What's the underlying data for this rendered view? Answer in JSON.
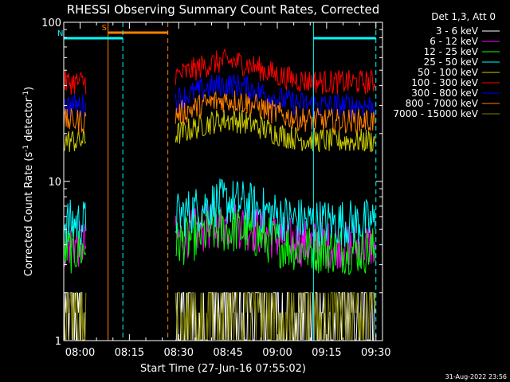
{
  "chart_data": {
    "type": "line",
    "title": "RHESSI Observing Summary Count Rates, Corrected",
    "xlabel": "Start Time (27-Jun-16 07:55:02)",
    "ylabel_main": "Corrected Count Rate (s",
    "ylabel_sup1": "-1",
    "ylabel_mid": " detector",
    "ylabel_sup2": "-1",
    "ylabel_end": ")",
    "yscale": "log",
    "ylim": [
      1,
      100
    ],
    "y_ticks": [
      "1",
      "10",
      "100"
    ],
    "x_ticks": [
      "08:00",
      "08:15",
      "08:30",
      "08:45",
      "09:00",
      "09:15",
      "09:30"
    ],
    "x_tick_minutes": [
      480,
      495,
      510,
      525,
      540,
      555,
      570
    ],
    "xlim_minutes": [
      475.03,
      572
    ],
    "legend_title": "Det 1,3, Att 0",
    "legend_position": "right",
    "timestamp": "31-Aug-2022 23:56",
    "markers": [
      {
        "label": "S",
        "color": "#ff8000",
        "start_min": 488.5,
        "end_min": 506.7
      },
      {
        "label": "N",
        "color": "#00ffff",
        "start_min": 475.03,
        "end_min": 493.0
      },
      {
        "label": "",
        "color": "#00ffff",
        "start_min": 551.0,
        "end_min": 570.0
      }
    ],
    "gaps_minutes": [
      [
        482.0,
        508.8
      ],
      [
        570.0,
        572.0
      ]
    ],
    "series": [
      {
        "name": "3 - 6 keV",
        "color": "#ffffff",
        "level": 1.3
      },
      {
        "name": "6 - 12 keV",
        "color": "#ff00ff",
        "level": 4.0
      },
      {
        "name": "12 - 25 keV",
        "color": "#00ff00",
        "level": 3.7
      },
      {
        "name": "25 - 50 keV",
        "color": "#00ffff",
        "level": 5.5
      },
      {
        "name": "50 - 100 keV",
        "color": "#cccc00",
        "level": 18
      },
      {
        "name": "100 - 300 keV",
        "color": "#ff0000",
        "level": 42
      },
      {
        "name": "300 - 800 keV",
        "color": "#0000ff",
        "level": 30
      },
      {
        "name": "800 - 7000 keV",
        "color": "#ff8000",
        "level": 24
      },
      {
        "name": "7000 - 15000 keV",
        "color": "#808000",
        "level": 1.5
      }
    ]
  }
}
